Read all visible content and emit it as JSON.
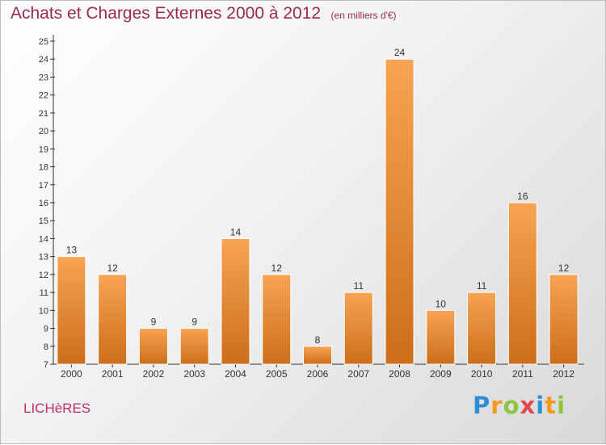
{
  "chart_data": {
    "type": "bar",
    "title": "Achats et Charges Externes 2000 à 2012",
    "subtitle": "(en milliers d'€)",
    "categories": [
      "2000",
      "2001",
      "2002",
      "2003",
      "2004",
      "2005",
      "2006",
      "2007",
      "2008",
      "2009",
      "2010",
      "2011",
      "2012"
    ],
    "values": [
      13,
      12,
      9,
      9,
      14,
      12,
      8,
      11,
      24,
      10,
      11,
      16,
      12
    ],
    "ylim": [
      7,
      25
    ],
    "yticks": [
      7,
      8,
      9,
      10,
      11,
      12,
      13,
      14,
      15,
      16,
      17,
      18,
      19,
      20,
      21,
      22,
      23,
      24,
      25
    ],
    "xlabel": "",
    "ylabel": "",
    "grid": false,
    "bar_color_top": "#f7a454",
    "bar_color_bottom": "#cc6e1a"
  },
  "footer": {
    "location": "LICHèRES",
    "logo_letters": [
      "P",
      "r",
      "o",
      "x",
      "i",
      "t",
      "i"
    ],
    "logo_colors": [
      "#2e8fd6",
      "#f29a1e",
      "#8cc63f",
      "#e2474d",
      "#2e8fd6",
      "#f29a1e",
      "#8cc63f"
    ]
  }
}
